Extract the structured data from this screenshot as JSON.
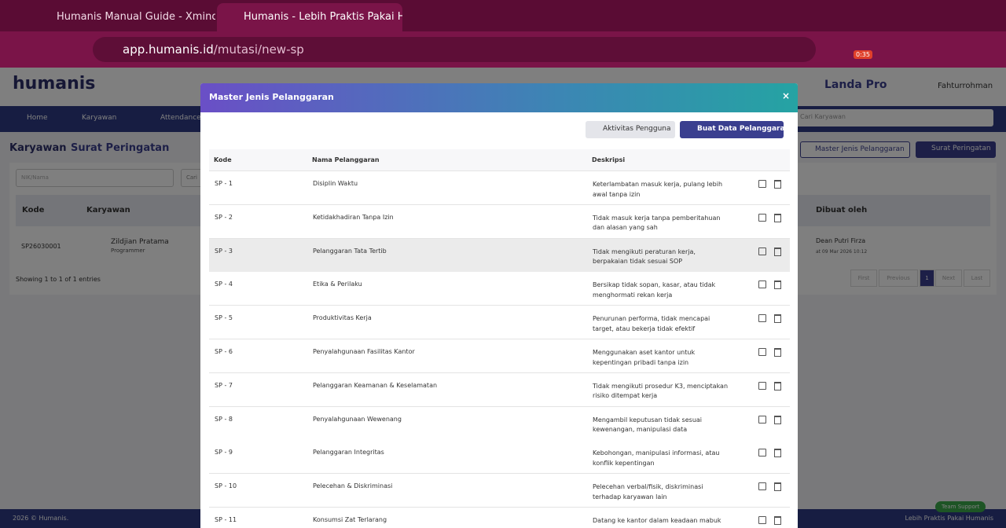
{
  "browser": {
    "tabs": [
      "Humanis Manual Guide - Xmind",
      "Humanis - Lebih Praktis Pakai H"
    ],
    "url_host": "app.humanis.id",
    "url_path": "/mutasi/new-sp",
    "timer": "0:35"
  },
  "app": {
    "logo": "humanis",
    "company": "Landa Pro",
    "user": "Fahturrohman",
    "nav": [
      "Home",
      "Karyawan",
      "Attendance"
    ],
    "search_placeholder": "Cari Karyawan",
    "breadcrumb": [
      "Karyawan",
      "Surat Peringatan"
    ],
    "buttons": [
      "Master Jenis Pelanggaran",
      "Surat Peringatan"
    ],
    "filter_placeholder": "NIK/Nama",
    "filter_other": "Cari",
    "table_headers": [
      "Kode",
      "Karyawan",
      "Dibuat oleh"
    ],
    "row": {
      "kode": "SP26030001",
      "name": "Zildjian Pratama",
      "role": "Programmer",
      "created_by": "Dean Putri Firza",
      "created_at": "at 09 Mar 2026 10:12"
    },
    "showing": "Showing 1 to 1 of 1 entries",
    "pagination": [
      "First",
      "Previous",
      "1",
      "Next",
      "Last"
    ],
    "footer_left": "2026 © Humanis.",
    "footer_right": "Lebih Praktis Pakai Humanis",
    "support": "Team Support"
  },
  "modal": {
    "title": "Master Jenis Pelanggaran",
    "buttons": [
      "Aktivitas Pengguna",
      "Buat Data Pelanggaran"
    ],
    "columns": [
      "Kode",
      "Nama Pelanggaran",
      "Deskripsi"
    ],
    "rows": [
      [
        "SP - 1",
        "Disiplin Waktu",
        "Keterlambatan masuk kerja, pulang lebih awal tanpa izin"
      ],
      [
        "SP - 2",
        "Ketidakhadiran Tanpa Izin",
        "Tidak masuk kerja tanpa pemberitahuan dan alasan yang sah"
      ],
      [
        "SP - 3",
        "Pelanggaran Tata Tertib",
        "Tidak mengikuti peraturan kerja, berpakaian tidak sesuai SOP"
      ],
      [
        "SP - 4",
        "Etika & Perilaku",
        "Bersikap tidak sopan, kasar, atau tidak menghormati rekan kerja"
      ],
      [
        "SP - 5",
        "Produktivitas Kerja",
        "Penurunan performa, tidak mencapai target, atau bekerja tidak efektif"
      ],
      [
        "SP - 6",
        "Penyalahgunaan Fasilitas Kantor",
        "Menggunakan aset kantor untuk kepentingan pribadi tanpa izin"
      ],
      [
        "SP - 7",
        "Pelanggaran Keamanan & Keselamatan",
        "Tidak mengikuti prosedur K3, menciptakan risiko ditempat kerja"
      ],
      [
        "SP - 8",
        "Penyalahgunaan Wewenang",
        "Mengambil keputusan tidak sesuai kewenangan, manipulasi data"
      ],
      [
        "SP - 9",
        "Pelanggaran Integritas",
        "Kebohongan, manipulasi informasi, atau konflik kepentingan"
      ],
      [
        "SP - 10",
        "Pelecehan & Diskriminasi",
        "Pelecehan verbal/fisik, diskriminasi terhadap karyawan lain"
      ],
      [
        "SP - 11",
        "Konsumsi Zat Terlarang",
        "Datang ke kantor dalam keadaan mabuk atau menggunakan narkoba"
      ]
    ]
  }
}
